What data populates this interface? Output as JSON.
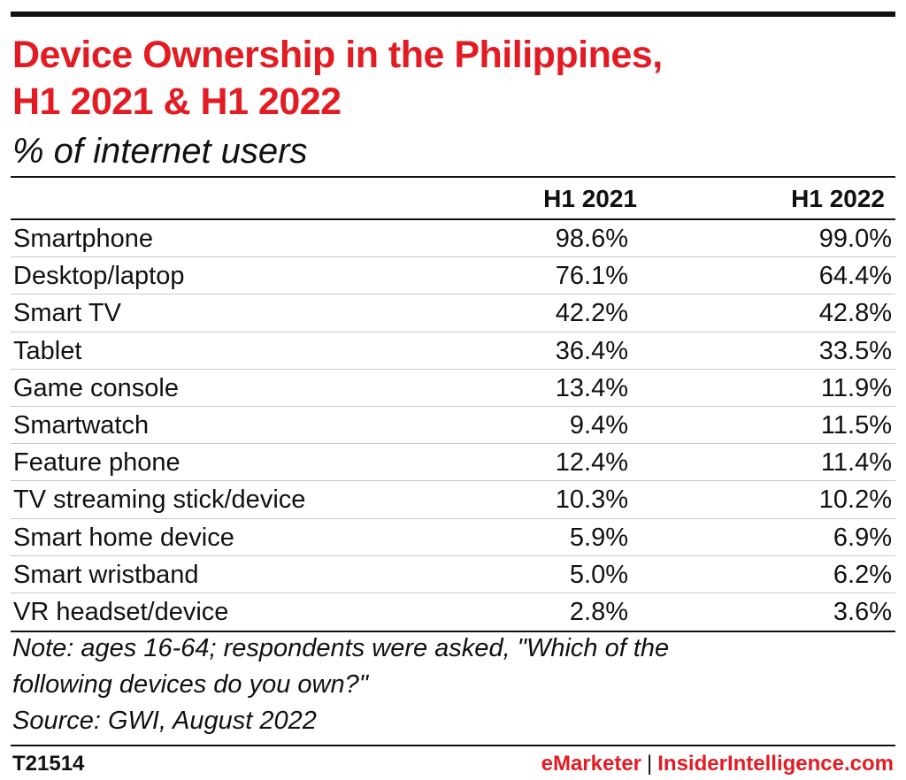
{
  "header": {
    "title_line1": "Device Ownership in the Philippines,",
    "title_line2": "H1 2021 & H1 2022",
    "subtitle": "% of internet users"
  },
  "chart_data": {
    "type": "table",
    "title": "Device Ownership in the Philippines, H1 2021 & H1 2022",
    "subtitle": "% of internet users",
    "columns": [
      "H1 2021",
      "H1 2022"
    ],
    "rows": [
      {
        "label": "Smartphone",
        "values": [
          "98.6%",
          "99.0%"
        ]
      },
      {
        "label": "Desktop/laptop",
        "values": [
          "76.1%",
          "64.4%"
        ]
      },
      {
        "label": "Smart TV",
        "values": [
          "42.2%",
          "42.8%"
        ]
      },
      {
        "label": "Tablet",
        "values": [
          "36.4%",
          "33.5%"
        ]
      },
      {
        "label": "Game console",
        "values": [
          "13.4%",
          "11.9%"
        ]
      },
      {
        "label": "Smartwatch",
        "values": [
          "9.4%",
          "11.5%"
        ]
      },
      {
        "label": "Feature phone",
        "values": [
          "12.4%",
          "11.4%"
        ]
      },
      {
        "label": "TV streaming stick/device",
        "values": [
          "10.3%",
          "10.2%"
        ]
      },
      {
        "label": "Smart home device",
        "values": [
          "5.9%",
          "6.9%"
        ]
      },
      {
        "label": "Smart wristband",
        "values": [
          "5.0%",
          "6.2%"
        ]
      },
      {
        "label": "VR headset/device",
        "values": [
          "2.8%",
          "3.6%"
        ]
      }
    ]
  },
  "notes": {
    "note_line1": "Note: ages 16-64; respondents were asked, \"Which of the",
    "note_line2": "following devices do you own?\"",
    "source": "Source: GWI, August 2022"
  },
  "footer": {
    "id": "T21514",
    "brand1": "eMarketer",
    "separator": "|",
    "brand2": "InsiderIntelligence.com"
  },
  "colors": {
    "accent": "#e31b23",
    "text": "#111111",
    "row_divider": "#c8c8c8"
  }
}
